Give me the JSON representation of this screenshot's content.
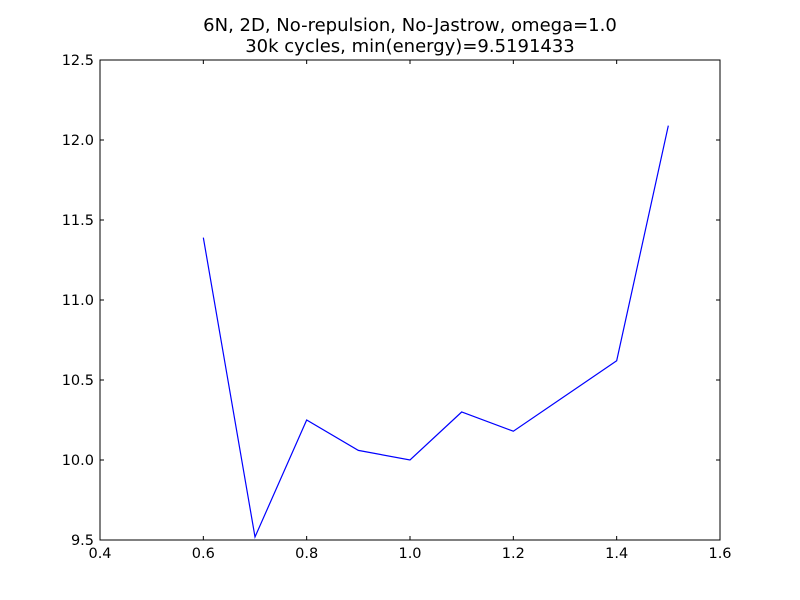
{
  "chart_data": {
    "type": "line",
    "title": "6N, 2D, No-repulsion, No-Jastrow, omega=1.0",
    "subtitle": "30k cycles, min(energy)=9.5191433",
    "xlabel": "",
    "ylabel": "",
    "xlim": [
      0.4,
      1.6
    ],
    "ylim": [
      9.5,
      12.5
    ],
    "xticks": [
      "0.4",
      "0.6",
      "0.8",
      "1.0",
      "1.2",
      "1.4",
      "1.6"
    ],
    "yticks": [
      "9.5",
      "10.0",
      "10.5",
      "11.0",
      "11.5",
      "12.0",
      "12.5"
    ],
    "grid": false,
    "legend": "none",
    "series": [
      {
        "color": "#0000ff",
        "x": [
          0.6,
          0.7,
          0.8,
          0.9,
          1.0,
          1.1,
          1.2,
          1.3,
          1.4,
          1.5
        ],
        "y": [
          11.39,
          9.519,
          10.25,
          10.06,
          10.0,
          10.3,
          10.18,
          10.4,
          10.62,
          12.09
        ]
      }
    ]
  }
}
